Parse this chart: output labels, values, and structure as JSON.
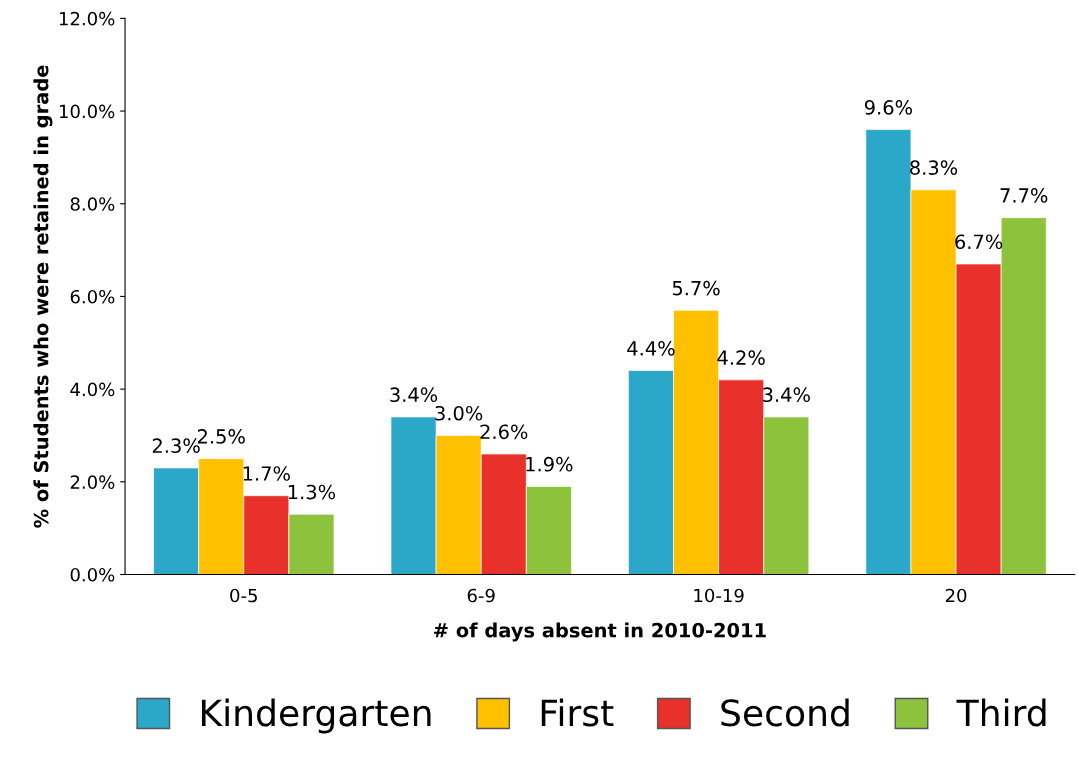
{
  "chart_data": {
    "type": "bar",
    "xlabel": "# of days absent in 2010-2011",
    "ylabel": "% of Students who were retained in grade",
    "categories": [
      "0-5",
      "6-9",
      "10-19",
      "20"
    ],
    "series": [
      {
        "name": "Kindergarten",
        "color": "#2aa7c9",
        "values": [
          2.3,
          3.4,
          4.4,
          9.6
        ],
        "value_labels": [
          "2.3%",
          "3.4%",
          "4.4%",
          "9.6%"
        ]
      },
      {
        "name": "First",
        "color": "#ffc000",
        "values": [
          2.5,
          3.0,
          5.7,
          8.3
        ],
        "value_labels": [
          "2.5%",
          "3.0%",
          "5.7%",
          "8.3%"
        ]
      },
      {
        "name": "Second",
        "color": "#e8312a",
        "values": [
          1.7,
          2.6,
          4.2,
          6.7
        ],
        "value_labels": [
          "1.7%",
          "2.6%",
          "4.2%",
          "6.7%"
        ]
      },
      {
        "name": "Third",
        "color": "#8dc33c",
        "values": [
          1.3,
          1.9,
          3.4,
          7.7
        ],
        "value_labels": [
          "1.3%",
          "1.9%",
          "3.4%",
          "7.7%"
        ]
      }
    ],
    "ylim": [
      0,
      12
    ],
    "yticks": [
      {
        "value": 0,
        "label": "0.0%"
      },
      {
        "value": 2,
        "label": "2.0%"
      },
      {
        "value": 4,
        "label": "4.0%"
      },
      {
        "value": 6,
        "label": "6.0%"
      },
      {
        "value": 8,
        "label": "8.0%"
      },
      {
        "value": 10,
        "label": "10.0%"
      },
      {
        "value": 12,
        "label": "12.0%"
      }
    ],
    "grid": false,
    "legend": "bottom"
  }
}
